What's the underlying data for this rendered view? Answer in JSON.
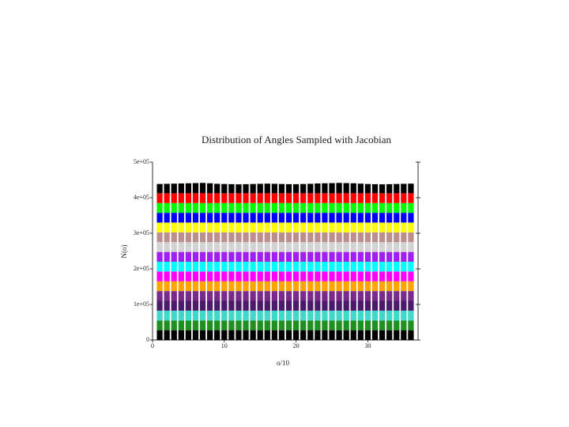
{
  "chart_data": {
    "type": "stacked_bar",
    "title": "Distribution of Angles Sampled with Jacobian",
    "x_label": "o/10",
    "y_label": "N(o)",
    "x": [
      1,
      2,
      3,
      4,
      5,
      6,
      7,
      8,
      9,
      10,
      11,
      12,
      13,
      14,
      15,
      16,
      17,
      18,
      19,
      20,
      21,
      22,
      23,
      24,
      25,
      26,
      27,
      28,
      29,
      30,
      31,
      32,
      33,
      34,
      35,
      36
    ],
    "series": [
      {
        "color": "#000000",
        "values": [
          27500,
          27500,
          27500,
          27500,
          27500,
          27500,
          27500,
          27500,
          27500,
          27500,
          27500,
          27500,
          27500,
          27500,
          27500,
          27500,
          27500,
          27500,
          27500,
          27500,
          27500,
          27500,
          27500,
          27500,
          27500,
          27500,
          27500,
          27500,
          27500,
          27500,
          27500,
          27500,
          27500,
          27500,
          27500,
          27500
        ]
      },
      {
        "color": "#1f8f1f",
        "values": [
          27500,
          27500,
          27500,
          27500,
          27500,
          27500,
          27500,
          27500,
          27500,
          27500,
          27500,
          27500,
          27500,
          27500,
          27500,
          27500,
          27500,
          27500,
          27500,
          27500,
          27500,
          27500,
          27500,
          27500,
          27500,
          27500,
          27500,
          27500,
          27500,
          27500,
          27500,
          27500,
          27500,
          27500,
          27500,
          27500
        ]
      },
      {
        "color": "#40d8c8",
        "values": [
          27500,
          27500,
          27500,
          27500,
          27500,
          27500,
          27500,
          27500,
          27500,
          27500,
          27500,
          27500,
          27500,
          27500,
          27500,
          27500,
          27500,
          27500,
          27500,
          27500,
          27500,
          27500,
          27500,
          27500,
          27500,
          27500,
          27500,
          27500,
          27500,
          27500,
          27500,
          27500,
          27500,
          27500,
          27500,
          27500
        ]
      },
      {
        "color": "#4b1a6b",
        "values": [
          27500,
          27500,
          27500,
          27500,
          27500,
          27500,
          27500,
          27500,
          27500,
          27500,
          27500,
          27500,
          27500,
          27500,
          27500,
          27500,
          27500,
          27500,
          27500,
          27500,
          27500,
          27500,
          27500,
          27500,
          27500,
          27500,
          27500,
          27500,
          27500,
          27500,
          27500,
          27500,
          27500,
          27500,
          27500,
          27500
        ]
      },
      {
        "color": "#7a2a8a",
        "values": [
          27500,
          27500,
          27500,
          27500,
          27500,
          27500,
          27500,
          27500,
          27500,
          27500,
          27500,
          27500,
          27500,
          27500,
          27500,
          27500,
          27500,
          27500,
          27500,
          27500,
          27500,
          27500,
          27500,
          27500,
          27500,
          27500,
          27500,
          27500,
          27500,
          27500,
          27500,
          27500,
          27500,
          27500,
          27500,
          27500
        ]
      },
      {
        "color": "#ffa500",
        "values": [
          27500,
          27500,
          27500,
          27500,
          27500,
          27500,
          27500,
          27500,
          27500,
          27500,
          27500,
          27500,
          27500,
          27500,
          27500,
          27500,
          27500,
          27500,
          27500,
          27500,
          27500,
          27500,
          27500,
          27500,
          27500,
          27500,
          27500,
          27500,
          27500,
          27500,
          27500,
          27500,
          27500,
          27500,
          27500,
          27500
        ]
      },
      {
        "color": "#ff00ff",
        "values": [
          27500,
          27500,
          27500,
          27500,
          27500,
          27500,
          27500,
          27500,
          27500,
          27500,
          27500,
          27500,
          27500,
          27500,
          27500,
          27500,
          27500,
          27500,
          27500,
          27500,
          27500,
          27500,
          27500,
          27500,
          27500,
          27500,
          27500,
          27500,
          27500,
          27500,
          27500,
          27500,
          27500,
          27500,
          27500,
          27500
        ]
      },
      {
        "color": "#00ffff",
        "values": [
          27500,
          27500,
          27500,
          27500,
          27500,
          27500,
          27500,
          27500,
          27500,
          27500,
          27500,
          27500,
          27500,
          27500,
          27500,
          27500,
          27500,
          27500,
          27500,
          27500,
          27500,
          27500,
          27500,
          27500,
          27500,
          27500,
          27500,
          27500,
          27500,
          27500,
          27500,
          27500,
          27500,
          27500,
          27500,
          27500
        ]
      },
      {
        "color": "#a020f0",
        "values": [
          27500,
          27500,
          27500,
          27500,
          27500,
          27500,
          27500,
          27500,
          27500,
          27500,
          27500,
          27500,
          27500,
          27500,
          27500,
          27500,
          27500,
          27500,
          27500,
          27500,
          27500,
          27500,
          27500,
          27500,
          27500,
          27500,
          27500,
          27500,
          27500,
          27500,
          27500,
          27500,
          27500,
          27500,
          27500,
          27500
        ]
      },
      {
        "color": "#d3d3d3",
        "values": [
          27500,
          27500,
          27500,
          27500,
          27500,
          27500,
          27500,
          27500,
          27500,
          27500,
          27500,
          27500,
          27500,
          27500,
          27500,
          27500,
          27500,
          27500,
          27500,
          27500,
          27500,
          27500,
          27500,
          27500,
          27500,
          27500,
          27500,
          27500,
          27500,
          27500,
          27500,
          27500,
          27500,
          27500,
          27500,
          27500
        ]
      },
      {
        "color": "#bc8f8f",
        "values": [
          27500,
          27500,
          27500,
          27500,
          27500,
          27500,
          27500,
          27500,
          27500,
          27500,
          27500,
          27500,
          27500,
          27500,
          27500,
          27500,
          27500,
          27500,
          27500,
          27500,
          27500,
          27500,
          27500,
          27500,
          27500,
          27500,
          27500,
          27500,
          27500,
          27500,
          27500,
          27500,
          27500,
          27500,
          27500,
          27500
        ]
      },
      {
        "color": "#ffff00",
        "values": [
          27500,
          27500,
          27500,
          27500,
          27500,
          27500,
          27500,
          27500,
          27500,
          27500,
          27500,
          27500,
          27500,
          27500,
          27500,
          27500,
          27500,
          27500,
          27500,
          27500,
          27500,
          27500,
          27500,
          27500,
          27500,
          27500,
          27500,
          27500,
          27500,
          27500,
          27500,
          27500,
          27500,
          27500,
          27500,
          27500
        ]
      },
      {
        "color": "#0000ff",
        "values": [
          27500,
          27500,
          27500,
          27500,
          27500,
          27500,
          27500,
          27500,
          27500,
          27500,
          27500,
          27500,
          27500,
          27500,
          27500,
          27500,
          27500,
          27500,
          27500,
          27500,
          27500,
          27500,
          27500,
          27500,
          27500,
          27500,
          27500,
          27500,
          27500,
          27500,
          27500,
          27500,
          27500,
          27500,
          27500,
          27500
        ]
      },
      {
        "color": "#00ff00",
        "values": [
          27500,
          27500,
          27500,
          27500,
          27500,
          27500,
          27500,
          27500,
          27500,
          27500,
          27500,
          27500,
          27500,
          27500,
          27500,
          27500,
          27500,
          27500,
          27500,
          27500,
          27500,
          27500,
          27500,
          27500,
          27500,
          27500,
          27500,
          27500,
          27500,
          27500,
          27500,
          27500,
          27500,
          27500,
          27500,
          27500
        ]
      },
      {
        "color": "#ff0000",
        "values": [
          27500,
          27500,
          27500,
          27500,
          27500,
          27500,
          27500,
          27500,
          27500,
          27500,
          27500,
          27500,
          27500,
          27500,
          27500,
          27500,
          27500,
          27500,
          27500,
          27500,
          27500,
          27500,
          27500,
          27500,
          27500,
          27500,
          27500,
          27500,
          27500,
          27500,
          27500,
          27500,
          27500,
          27500,
          27500,
          27500
        ]
      },
      {
        "color": "#000000",
        "values": [
          26000,
          26500,
          27000,
          27500,
          28000,
          28500,
          29000,
          28000,
          26500,
          26000,
          25500,
          25000,
          25500,
          26000,
          26500,
          27000,
          26500,
          26000,
          25500,
          25500,
          26000,
          26500,
          27500,
          28000,
          28500,
          29000,
          28500,
          28000,
          27000,
          26000,
          25500,
          25000,
          25500,
          26000,
          26500,
          27000
        ]
      }
    ],
    "xlim": [
      0,
      37
    ],
    "xticks": [
      0,
      10,
      20,
      30
    ],
    "ylim": [
      0,
      500000
    ],
    "yticks": [
      0,
      {
        "value": 100000,
        "label": "1e+05"
      },
      {
        "value": 200000,
        "label": "2e+05"
      },
      {
        "value": 300000,
        "label": "3e+05"
      },
      {
        "value": 400000,
        "label": "4e+05"
      },
      {
        "value": 500000,
        "label": "5e+05"
      }
    ]
  }
}
